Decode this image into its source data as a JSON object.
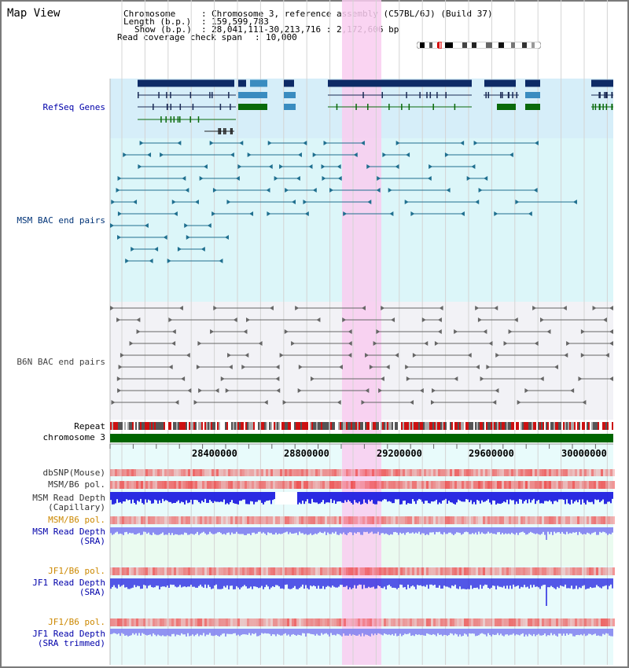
{
  "window": {
    "title": "Map View"
  },
  "info": {
    "chromosome_label": "Chromosome",
    "chromosome_value": "Chromosome 3, reference assembly (C57BL/6J) (Build 37)",
    "length_label": "Length (b.p.)",
    "length_value": "159,599,783",
    "show_label": "Show (b.p.)",
    "show_value": "28,041,111-30,213,716 : 2,172,606 bp",
    "coverage_label": "Read coverage check span",
    "coverage_value": "10,000"
  },
  "tracks": {
    "refseq": "RefSeq Genes",
    "msm_bac": "MSM BAC end pairs",
    "b6n_bac": "B6N BAC end pairs",
    "repeat": "Repeat",
    "chromosome": "chromosome 3",
    "dbsnp": "dbSNP(Mouse)",
    "msm_b6_pol_1": "MSM/B6 pol.",
    "msm_read_depth_cap_1": "MSM Read Depth",
    "msm_read_depth_cap_2": "(Capillary)",
    "msm_b6_pol_2": "MSM/B6 pol.",
    "msm_read_depth_sra_1": "MSM Read Depth",
    "msm_read_depth_sra_2": "(SRA)",
    "jf1_b6_pol_1": "JF1/B6 pol.",
    "jf1_read_depth_sra_1": "JF1 Read Depth",
    "jf1_read_depth_sra_2": "(SRA)",
    "jf1_b6_pol_2": "JF1/B6 pol.",
    "jf1_read_depth_trim_1": "JF1 Read Depth",
    "jf1_read_depth_trim_2": "(SRA trimmed)"
  },
  "axis": {
    "ticks": [
      "28400000",
      "28800000",
      "29200000",
      "29600000",
      "30000000"
    ]
  },
  "colors": {
    "highlight": "#f9cdf0",
    "refseq_bg": "#d6eef9",
    "msm_bg": "#dcf6f9",
    "b6n_bg": "#f2f2f6",
    "gene_dark": "#0d2a66",
    "gene_mid": "#3a8cc0",
    "gene_green": "#0a6a0a",
    "msm_pair": "#1f6f8f",
    "b6n_pair": "#666666",
    "chromosome_bar": "#006600",
    "depth_dark": "#2020e0",
    "depth_light": "#8080f0",
    "pol_red": "#ee4444"
  }
}
